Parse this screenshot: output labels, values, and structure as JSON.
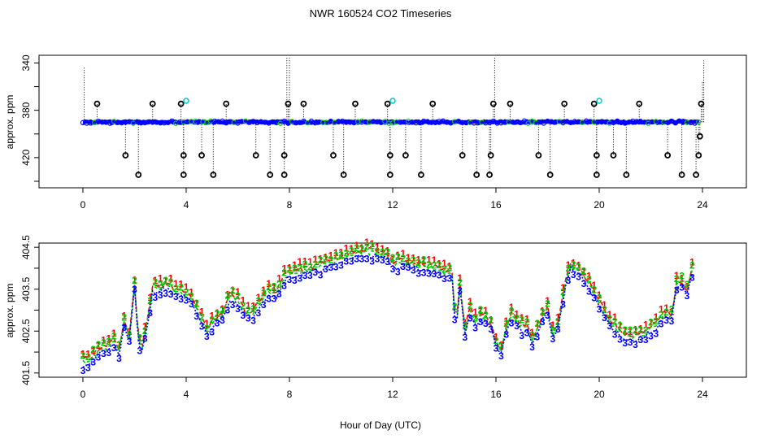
{
  "figure_title": "NWR  160524  CO2 Timeseries",
  "chart_data": [
    {
      "type": "scatter",
      "name": "top-panel",
      "title": "NWR  160524  CO2 Timeseries",
      "xlabel": "",
      "ylabel": "approx. ppm",
      "xlim": [
        -1.7,
        25.7
      ],
      "ylim": [
        445.5,
        333.5
      ],
      "xticks": [
        0,
        4,
        8,
        12,
        16,
        20,
        24
      ],
      "yticks": [
        340,
        360,
        380,
        400,
        420,
        440
      ],
      "ytick_labels": [
        "340",
        "",
        "380",
        "",
        "420",
        ""
      ],
      "baseline": 390,
      "line_color": "#0000ff",
      "outlier_marker": "o",
      "outlier_color": "#000000",
      "cyan_marker_color": "#00cccc",
      "outliers_high": [
        {
          "x": 2.15,
          "y": 434.5
        },
        {
          "x": 3.9,
          "y": 434.5
        },
        {
          "x": 5.05,
          "y": 434.5
        },
        {
          "x": 7.25,
          "y": 434.5
        },
        {
          "x": 7.8,
          "y": 434.5
        },
        {
          "x": 10.1,
          "y": 434.5
        },
        {
          "x": 11.9,
          "y": 434.5
        },
        {
          "x": 13.1,
          "y": 434.5
        },
        {
          "x": 15.25,
          "y": 434.5
        },
        {
          "x": 15.75,
          "y": 434.5
        },
        {
          "x": 18.1,
          "y": 434.5
        },
        {
          "x": 19.9,
          "y": 434.5
        },
        {
          "x": 21.05,
          "y": 434.5
        },
        {
          "x": 23.2,
          "y": 434.5
        },
        {
          "x": 23.75,
          "y": 434.5
        },
        {
          "x": 1.65,
          "y": 418
        },
        {
          "x": 3.9,
          "y": 418
        },
        {
          "x": 4.6,
          "y": 418
        },
        {
          "x": 6.7,
          "y": 418
        },
        {
          "x": 7.8,
          "y": 418
        },
        {
          "x": 9.7,
          "y": 418
        },
        {
          "x": 11.9,
          "y": 418
        },
        {
          "x": 12.5,
          "y": 418
        },
        {
          "x": 14.7,
          "y": 418
        },
        {
          "x": 15.8,
          "y": 418
        },
        {
          "x": 17.65,
          "y": 418
        },
        {
          "x": 19.9,
          "y": 418
        },
        {
          "x": 20.55,
          "y": 418
        },
        {
          "x": 22.65,
          "y": 418
        },
        {
          "x": 23.85,
          "y": 418
        },
        {
          "x": 23.9,
          "y": 402
        }
      ],
      "outliers_low": [
        {
          "x": 0.55,
          "y": 374.5
        },
        {
          "x": 2.7,
          "y": 374.5
        },
        {
          "x": 3.8,
          "y": 374.5
        },
        {
          "x": 5.55,
          "y": 374.5
        },
        {
          "x": 7.95,
          "y": 374.5
        },
        {
          "x": 8.55,
          "y": 374.5
        },
        {
          "x": 10.55,
          "y": 374.5
        },
        {
          "x": 11.8,
          "y": 374.5
        },
        {
          "x": 13.55,
          "y": 374.5
        },
        {
          "x": 15.9,
          "y": 374.5
        },
        {
          "x": 16.55,
          "y": 374.5
        },
        {
          "x": 18.65,
          "y": 374.5
        },
        {
          "x": 19.8,
          "y": 374.5
        },
        {
          "x": 21.55,
          "y": 374.5
        },
        {
          "x": 23.95,
          "y": 374.5
        }
      ],
      "cyan_points": [
        {
          "x": 4.0,
          "y": 372
        },
        {
          "x": 12.0,
          "y": 372
        },
        {
          "x": 20.0,
          "y": 372
        }
      ],
      "spikes_down": [
        {
          "x": 0.05,
          "y": 343
        },
        {
          "x": 7.9,
          "y": 331
        },
        {
          "x": 8.0,
          "y": 331
        },
        {
          "x": 15.95,
          "y": 331
        },
        {
          "x": 24.05,
          "y": 338
        },
        {
          "x": 24.0,
          "y": 356
        }
      ]
    },
    {
      "type": "line",
      "name": "bottom-panel",
      "xlabel": "Hour of Day (UTC)",
      "ylabel": "approx. ppm",
      "xlim": [
        -1.7,
        25.7
      ],
      "ylim": [
        401.4,
        404.6
      ],
      "xticks": [
        0,
        4,
        8,
        12,
        16,
        20,
        24
      ],
      "yticks": [
        401.5,
        402.0,
        402.5,
        403.0,
        403.5,
        404.0,
        404.5
      ],
      "ytick_labels": [
        "401.5",
        "",
        "402.5",
        "",
        "403.5",
        "",
        "404.5"
      ],
      "series": [
        {
          "name": "1",
          "label": "1",
          "color": "#ff0000",
          "offset": 0.1
        },
        {
          "name": "2",
          "label": "2",
          "color": "#00cc00",
          "offset": 0.04
        },
        {
          "name": "3",
          "label": "3",
          "color": "#0000ff",
          "offset": -0.03
        }
      ],
      "profile": [
        [
          0.0,
          401.72
        ],
        [
          0.3,
          401.78
        ],
        [
          0.6,
          401.98
        ],
        [
          0.9,
          402.05
        ],
        [
          1.2,
          402.18
        ],
        [
          1.4,
          401.98
        ],
        [
          1.6,
          402.65
        ],
        [
          1.8,
          402.3
        ],
        [
          2.0,
          403.55
        ],
        [
          2.15,
          402.2
        ],
        [
          2.3,
          402.1
        ],
        [
          2.5,
          402.7
        ],
        [
          2.7,
          403.45
        ],
        [
          3.0,
          403.5
        ],
        [
          3.3,
          403.55
        ],
        [
          3.6,
          403.38
        ],
        [
          3.9,
          403.35
        ],
        [
          4.2,
          403.2
        ],
        [
          4.5,
          402.85
        ],
        [
          4.8,
          402.45
        ],
        [
          5.1,
          402.7
        ],
        [
          5.4,
          402.85
        ],
        [
          5.7,
          403.3
        ],
        [
          6.0,
          403.2
        ],
        [
          6.3,
          402.85
        ],
        [
          6.6,
          402.9
        ],
        [
          6.9,
          403.2
        ],
        [
          7.2,
          403.4
        ],
        [
          7.5,
          403.35
        ],
        [
          7.8,
          403.75
        ],
        [
          8.2,
          403.85
        ],
        [
          8.6,
          403.9
        ],
        [
          9.0,
          403.95
        ],
        [
          9.4,
          404.05
        ],
        [
          9.8,
          404.1
        ],
        [
          10.2,
          404.25
        ],
        [
          10.6,
          404.3
        ],
        [
          11.0,
          404.35
        ],
        [
          11.4,
          404.3
        ],
        [
          11.8,
          404.25
        ],
        [
          12.0,
          404.05
        ],
        [
          12.4,
          404.1
        ],
        [
          12.8,
          404.05
        ],
        [
          13.2,
          404.0
        ],
        [
          13.6,
          403.95
        ],
        [
          14.0,
          403.85
        ],
        [
          14.3,
          403.8
        ],
        [
          14.45,
          402.45
        ],
        [
          14.6,
          403.55
        ],
        [
          14.8,
          402.5
        ],
        [
          15.0,
          402.95
        ],
        [
          15.2,
          402.7
        ],
        [
          15.4,
          402.8
        ],
        [
          15.6,
          402.75
        ],
        [
          15.8,
          402.6
        ],
        [
          16.0,
          402.15
        ],
        [
          16.2,
          402.0
        ],
        [
          16.4,
          402.5
        ],
        [
          16.6,
          402.85
        ],
        [
          16.8,
          402.7
        ],
        [
          17.0,
          402.55
        ],
        [
          17.2,
          402.55
        ],
        [
          17.4,
          402.2
        ],
        [
          17.6,
          402.5
        ],
        [
          17.8,
          402.8
        ],
        [
          18.0,
          402.95
        ],
        [
          18.2,
          402.4
        ],
        [
          18.4,
          402.6
        ],
        [
          18.7,
          403.6
        ],
        [
          18.9,
          404.0
        ],
        [
          19.2,
          403.9
        ],
        [
          19.5,
          403.65
        ],
        [
          19.8,
          403.35
        ],
        [
          20.1,
          403.0
        ],
        [
          20.4,
          402.7
        ],
        [
          20.7,
          402.5
        ],
        [
          21.0,
          402.35
        ],
        [
          21.3,
          402.3
        ],
        [
          21.6,
          402.35
        ],
        [
          21.9,
          402.45
        ],
        [
          22.2,
          402.6
        ],
        [
          22.5,
          402.85
        ],
        [
          22.8,
          402.8
        ],
        [
          23.0,
          403.55
        ],
        [
          23.2,
          403.6
        ],
        [
          23.4,
          403.4
        ],
        [
          23.7,
          404.2
        ]
      ]
    }
  ]
}
